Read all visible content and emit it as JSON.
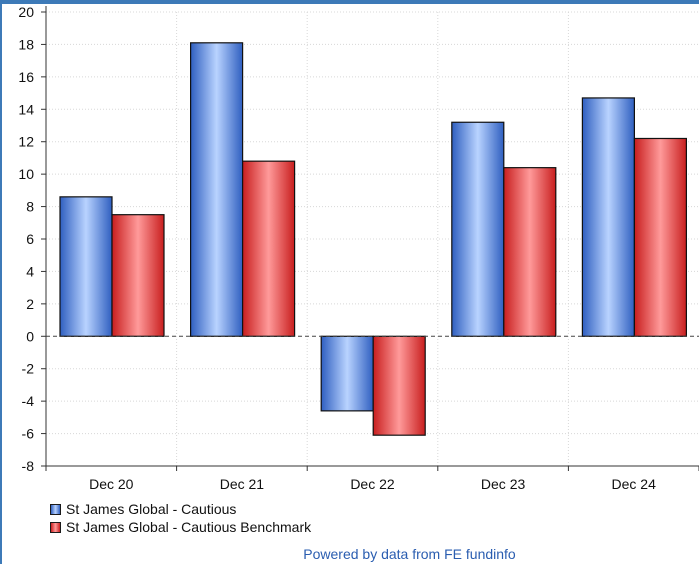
{
  "chart_data": {
    "type": "bar",
    "categories": [
      "Dec 20",
      "Dec 21",
      "Dec 22",
      "Dec 23",
      "Dec 24"
    ],
    "series": [
      {
        "name": "St James Global - Cautious",
        "values": [
          8.6,
          18.1,
          -4.6,
          13.2,
          14.7
        ],
        "color": "#4f7fd6"
      },
      {
        "name": "St James Global - Cautious Benchmark",
        "values": [
          7.5,
          10.8,
          -6.1,
          10.4,
          12.2
        ],
        "color": "#e23c3c"
      }
    ],
    "yticks": [
      -8,
      -6,
      -4,
      -2,
      0,
      2,
      4,
      6,
      8,
      10,
      12,
      14,
      16,
      18,
      20
    ],
    "ylim": [
      -8,
      20
    ],
    "grid": true,
    "legend_position": "bottom-left"
  },
  "footer": "Powered by data from FE fundinfo"
}
